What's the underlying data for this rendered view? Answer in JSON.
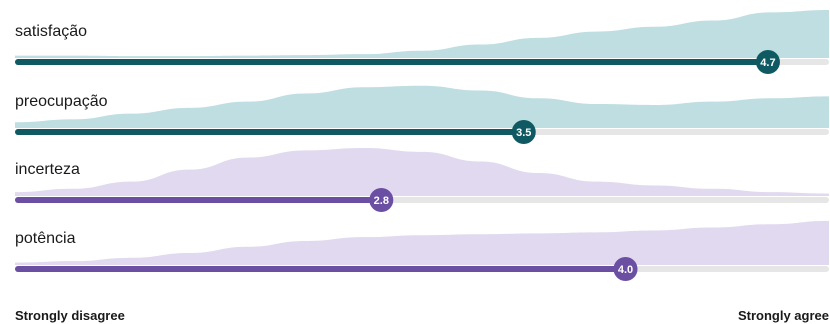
{
  "chart_data": {
    "type": "bar",
    "scale": {
      "min": 1,
      "max": 5
    },
    "axis_labels": {
      "min": "Strongly disagree",
      "max": "Strongly agree"
    },
    "rows": [
      {
        "label": "satisfação",
        "mean": 4.7,
        "mean_text": "4.7",
        "color": "#0f5a62",
        "dist_color": "#b3d8dc",
        "distribution": [
          0.05,
          0.05,
          0.04,
          0.04,
          0.05,
          0.06,
          0.08,
          0.15,
          0.28,
          0.42,
          0.55,
          0.65,
          0.78,
          0.95,
          1.0
        ]
      },
      {
        "label": "preocupação",
        "mean": 3.5,
        "mean_text": "3.5",
        "color": "#0f5a62",
        "dist_color": "#b3d8dc",
        "distribution": [
          0.12,
          0.18,
          0.3,
          0.42,
          0.55,
          0.72,
          0.85,
          0.88,
          0.78,
          0.62,
          0.5,
          0.48,
          0.55,
          0.62,
          0.66
        ]
      },
      {
        "label": "incerteza",
        "mean": 2.8,
        "mean_text": "2.8",
        "color": "#6a4fa3",
        "dist_color": "#dcd2ec",
        "distribution": [
          0.08,
          0.15,
          0.3,
          0.55,
          0.8,
          0.95,
          1.0,
          0.92,
          0.72,
          0.48,
          0.3,
          0.22,
          0.15,
          0.08,
          0.05
        ]
      },
      {
        "label": "potência",
        "mean": 4.0,
        "mean_text": "4.0",
        "color": "#6a4fa3",
        "dist_color": "#dcd2ec",
        "distribution": [
          0.05,
          0.08,
          0.15,
          0.25,
          0.38,
          0.5,
          0.58,
          0.62,
          0.64,
          0.66,
          0.68,
          0.72,
          0.78,
          0.85,
          0.92
        ]
      }
    ]
  }
}
